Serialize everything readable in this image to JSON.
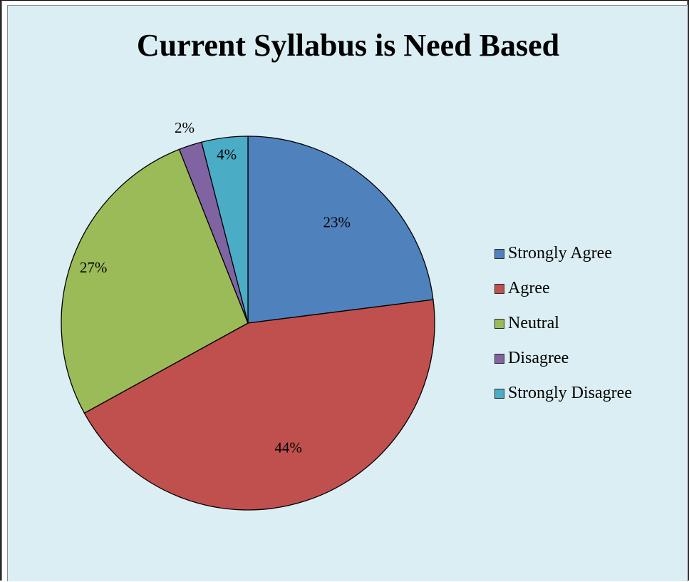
{
  "chart_data": {
    "type": "pie",
    "title": "Current Syllabus is Need Based",
    "legend_position": "right",
    "slices": [
      {
        "label": "Strongly Agree",
        "value": 23,
        "display": "23%",
        "color": "#4f81bd"
      },
      {
        "label": "Agree",
        "value": 44,
        "display": "44%",
        "color": "#c0504d"
      },
      {
        "label": "Neutral",
        "value": 27,
        "display": "27%",
        "color": "#9bbb59"
      },
      {
        "label": "Disagree",
        "value": 2,
        "display": "2%",
        "color": "#8064a2"
      },
      {
        "label": "Strongly Disagree",
        "value": 4,
        "display": "4%",
        "color": "#4bacc6"
      }
    ]
  }
}
